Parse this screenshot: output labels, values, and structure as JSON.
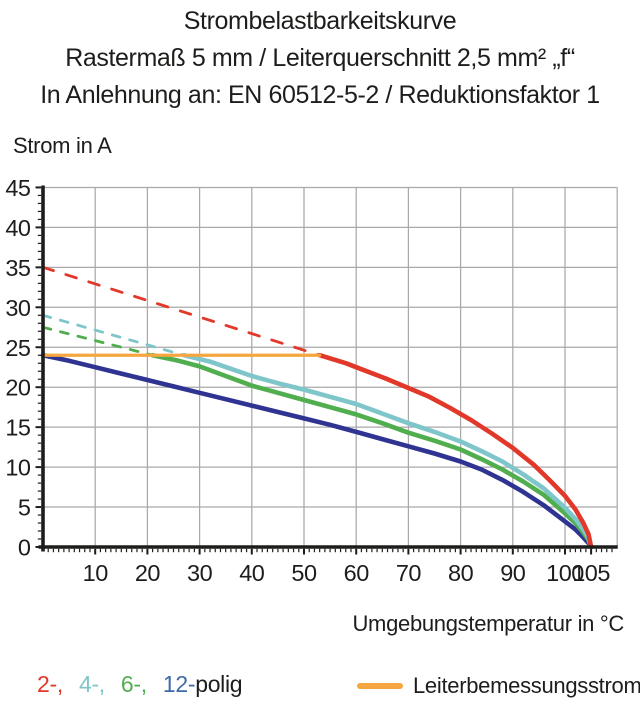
{
  "title": {
    "line1": "Strombelastbarkeitskurve",
    "line2": "Rastermaß 5 mm / Leiterquerschnitt 2,5 mm² „f“",
    "line3": "In Anlehnung an: EN 60512-5-2 / Reduktionsfaktor 1"
  },
  "chart_data": {
    "type": "line",
    "title": "Strombelastbarkeitskurve",
    "xlabel": "Umgebungstemperatur in °C",
    "ylabel": "Strom in A",
    "xlim": [
      0,
      110
    ],
    "ylim": [
      0,
      45
    ],
    "x_ticks": [
      10,
      20,
      30,
      40,
      50,
      60,
      70,
      80,
      90,
      100,
      105
    ],
    "y_ticks": [
      0,
      5,
      10,
      15,
      20,
      25,
      30,
      35,
      40,
      45
    ],
    "x_gridlines": [
      10,
      20,
      30,
      40,
      50,
      60,
      70,
      80,
      90,
      100,
      110
    ],
    "grid": true,
    "grid_color": "#a9a9a9",
    "axis_color": "#1d1d1b",
    "legend_position": "bottom",
    "series": [
      {
        "name": "2-polig",
        "color": "#e2382a",
        "dashed": [
          [
            0,
            35
          ],
          [
            53,
            24
          ]
        ],
        "solid": [
          [
            53,
            24
          ],
          [
            58,
            23
          ],
          [
            62,
            22
          ],
          [
            66,
            21
          ],
          [
            70,
            19.9
          ],
          [
            74,
            18.8
          ],
          [
            78,
            17.4
          ],
          [
            82,
            15.9
          ],
          [
            86,
            14.2
          ],
          [
            90,
            12.4
          ],
          [
            94,
            10.3
          ],
          [
            97,
            8.4
          ],
          [
            100,
            6.4
          ],
          [
            102,
            4.7
          ],
          [
            103.5,
            3.0
          ],
          [
            104.5,
            1.6
          ],
          [
            105,
            0
          ]
        ]
      },
      {
        "name": "4-polig",
        "color": "#7fc6cb",
        "dashed": [
          [
            0,
            29
          ],
          [
            27,
            24
          ]
        ],
        "solid": [
          [
            27,
            24
          ],
          [
            32,
            23.2
          ],
          [
            36,
            22.3
          ],
          [
            40,
            21.4
          ],
          [
            45,
            20.5
          ],
          [
            50,
            19.7
          ],
          [
            55,
            18.8
          ],
          [
            60,
            17.9
          ],
          [
            65,
            16.7
          ],
          [
            70,
            15.5
          ],
          [
            75,
            14.4
          ],
          [
            80,
            13.2
          ],
          [
            84,
            12.0
          ],
          [
            88,
            10.7
          ],
          [
            92,
            9.1
          ],
          [
            96,
            7.3
          ],
          [
            100,
            4.9
          ],
          [
            102,
            3.5
          ],
          [
            103.5,
            2.2
          ],
          [
            104.5,
            1.1
          ],
          [
            105,
            0
          ]
        ]
      },
      {
        "name": "6-polig",
        "color": "#50ae4e",
        "dashed": [
          [
            0,
            27.5
          ],
          [
            21,
            24
          ]
        ],
        "solid": [
          [
            21,
            24
          ],
          [
            26,
            23.3
          ],
          [
            30,
            22.6
          ],
          [
            35,
            21.4
          ],
          [
            40,
            20.2
          ],
          [
            45,
            19.3
          ],
          [
            50,
            18.4
          ],
          [
            55,
            17.5
          ],
          [
            60,
            16.6
          ],
          [
            65,
            15.5
          ],
          [
            70,
            14.3
          ],
          [
            75,
            13.3
          ],
          [
            80,
            12.2
          ],
          [
            84,
            11.0
          ],
          [
            88,
            9.7
          ],
          [
            92,
            8.2
          ],
          [
            96,
            6.5
          ],
          [
            100,
            4.2
          ],
          [
            102,
            3.0
          ],
          [
            103.5,
            1.8
          ],
          [
            104.5,
            0.9
          ],
          [
            105,
            0
          ]
        ]
      },
      {
        "name": "12-polig",
        "color": "#2f3492",
        "dashed": [],
        "solid": [
          [
            0,
            24
          ],
          [
            5,
            23.3
          ],
          [
            10,
            22.5
          ],
          [
            15,
            21.7
          ],
          [
            20,
            20.9
          ],
          [
            25,
            20.1
          ],
          [
            30,
            19.3
          ],
          [
            35,
            18.5
          ],
          [
            40,
            17.7
          ],
          [
            45,
            16.9
          ],
          [
            50,
            16.1
          ],
          [
            55,
            15.3
          ],
          [
            60,
            14.4
          ],
          [
            65,
            13.5
          ],
          [
            70,
            12.6
          ],
          [
            75,
            11.7
          ],
          [
            80,
            10.7
          ],
          [
            84,
            9.7
          ],
          [
            88,
            8.4
          ],
          [
            92,
            6.9
          ],
          [
            96,
            5.2
          ],
          [
            100,
            3.2
          ],
          [
            102,
            2.2
          ],
          [
            103.5,
            1.2
          ],
          [
            104.5,
            0.5
          ],
          [
            105,
            0
          ]
        ]
      }
    ],
    "rated_current_line": {
      "label": "Leiterbemessungsstrom",
      "color": "#f6a63e",
      "y": 24,
      "x_from": 0,
      "x_to": 53
    }
  },
  "legend": {
    "pole_items": [
      {
        "label": "2-,",
        "color": "#e2382a"
      },
      {
        "label": "4-,",
        "color": "#7fc6cb"
      },
      {
        "label": "6-,",
        "color": "#50ae4e"
      },
      {
        "label": "12-",
        "color": "#3f6ba8"
      }
    ],
    "pole_suffix": "polig",
    "rated_label": "Leiterbemessungsstrom",
    "rated_color": "#f6a63e"
  }
}
